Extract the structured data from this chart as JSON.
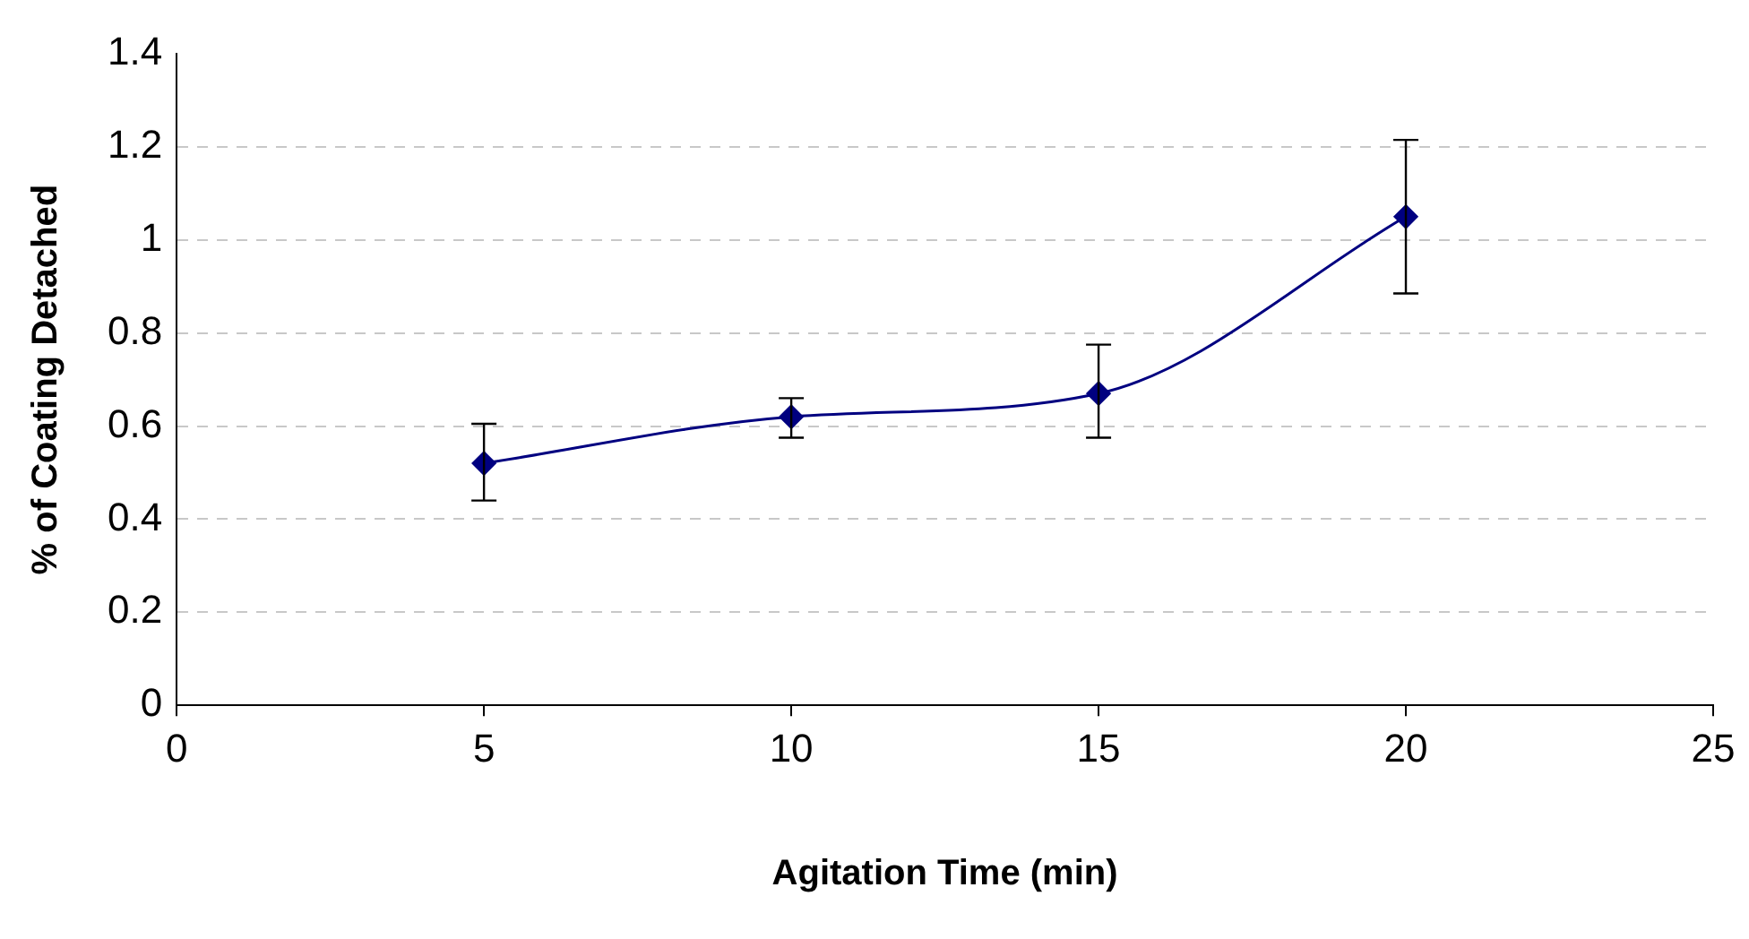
{
  "chart_data": {
    "type": "line",
    "xlabel": "Agitation Time (min)",
    "ylabel": "% of Coating Detached",
    "x": [
      5,
      10,
      15,
      20
    ],
    "series": [
      {
        "color": "#000080",
        "values": [
          0.52,
          0.62,
          0.67,
          1.05
        ],
        "errors": [
          [
            0.44,
            0.605
          ],
          [
            0.575,
            0.66
          ],
          [
            0.575,
            0.775
          ],
          [
            0.885,
            1.215
          ]
        ]
      }
    ],
    "xlim": [
      0,
      25
    ],
    "xticks": [
      0,
      5,
      10,
      15,
      20,
      25
    ],
    "ylim": [
      0,
      1.4
    ],
    "yticks": [
      0,
      0.2,
      0.4,
      0.6,
      0.8,
      1,
      1.2,
      1.4
    ],
    "grid": "y",
    "legend": false,
    "marker": "diamond",
    "line_style": "solid"
  }
}
